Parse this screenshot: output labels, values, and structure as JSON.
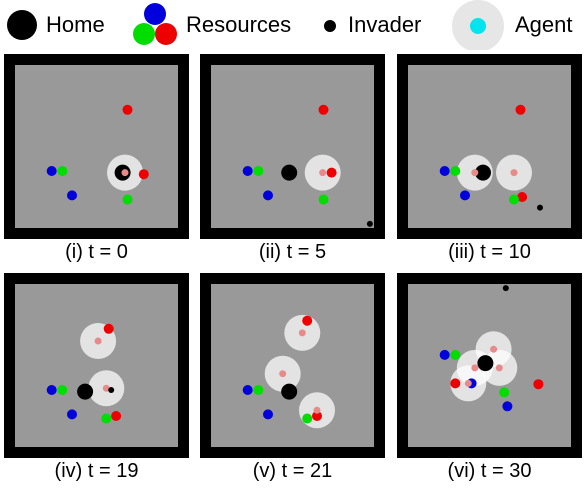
{
  "legend": {
    "home_label": "Home",
    "resources_label": "Resources",
    "invader_label": "Invader",
    "agent_label": "Agent"
  },
  "colors": {
    "frame": "#000000",
    "arena": "#999999",
    "home": "#000000",
    "invader": "#000000",
    "red": "#ee0000",
    "green": "#00dd00",
    "blue": "#0000dd",
    "agent_halo": "#e6e6e6",
    "agent_core": "#e88a8a",
    "agent_legend_core": "#00e5ee"
  },
  "panels": [
    {
      "caption": "(i) t = 0",
      "home": [
        0.32,
        0.32
      ],
      "agents": [
        [
          0.35,
          0.32
        ]
      ],
      "resources": [
        {
          "c": "red",
          "p": [
            0.38,
            -0.45
          ]
        },
        {
          "c": "red",
          "p": [
            0.58,
            0.34
          ]
        },
        {
          "c": "blue",
          "p": [
            -0.55,
            0.3
          ]
        },
        {
          "c": "green",
          "p": [
            -0.42,
            0.3
          ]
        },
        {
          "c": "blue",
          "p": [
            -0.3,
            0.6
          ]
        },
        {
          "c": "green",
          "p": [
            0.38,
            0.65
          ]
        }
      ],
      "invaders": []
    },
    {
      "caption": "(ii) t = 5",
      "home": [
        -0.04,
        0.32
      ],
      "agents": [
        [
          0.37,
          0.32
        ]
      ],
      "resources": [
        {
          "c": "red",
          "p": [
            0.38,
            -0.45
          ]
        },
        {
          "c": "red",
          "p": [
            0.48,
            0.32
          ]
        },
        {
          "c": "blue",
          "p": [
            -0.55,
            0.3
          ]
        },
        {
          "c": "green",
          "p": [
            -0.42,
            0.3
          ]
        },
        {
          "c": "blue",
          "p": [
            -0.3,
            0.6
          ]
        },
        {
          "c": "green",
          "p": [
            0.38,
            0.65
          ]
        }
      ],
      "invaders": [
        [
          0.95,
          0.95
        ]
      ]
    },
    {
      "caption": "(iii) t = 10",
      "home": [
        -0.08,
        0.32
      ],
      "agents": [
        [
          -0.18,
          0.32
        ],
        [
          0.3,
          0.32
        ]
      ],
      "resources": [
        {
          "c": "red",
          "p": [
            0.38,
            -0.45
          ]
        },
        {
          "c": "red",
          "p": [
            0.4,
            0.62
          ]
        },
        {
          "c": "blue",
          "p": [
            -0.55,
            0.3
          ]
        },
        {
          "c": "green",
          "p": [
            -0.42,
            0.3
          ]
        },
        {
          "c": "blue",
          "p": [
            -0.3,
            0.6
          ]
        },
        {
          "c": "green",
          "p": [
            0.3,
            0.65
          ]
        }
      ],
      "invaders": [
        [
          0.62,
          0.75
        ]
      ]
    },
    {
      "caption": "(iv) t = 19",
      "home": [
        -0.14,
        0.32
      ],
      "agents": [
        [
          0.02,
          -0.3
        ],
        [
          0.12,
          0.28
        ]
      ],
      "resources": [
        {
          "c": "red",
          "p": [
            0.15,
            -0.45
          ]
        },
        {
          "c": "red",
          "p": [
            0.24,
            0.62
          ]
        },
        {
          "c": "blue",
          "p": [
            -0.55,
            0.3
          ]
        },
        {
          "c": "green",
          "p": [
            -0.42,
            0.3
          ]
        },
        {
          "c": "blue",
          "p": [
            -0.3,
            0.6
          ]
        },
        {
          "c": "green",
          "p": [
            0.12,
            0.65
          ]
        }
      ],
      "invaders": [
        [
          0.18,
          0.3
        ]
      ]
    },
    {
      "caption": "(v) t = 21",
      "home": [
        -0.04,
        0.32
      ],
      "agents": [
        [
          -0.12,
          0.1
        ],
        [
          0.12,
          -0.4
        ],
        [
          0.3,
          0.55
        ]
      ],
      "resources": [
        {
          "c": "red",
          "p": [
            0.18,
            -0.55
          ]
        },
        {
          "c": "red",
          "p": [
            0.3,
            0.62
          ]
        },
        {
          "c": "blue",
          "p": [
            -0.55,
            0.3
          ]
        },
        {
          "c": "green",
          "p": [
            -0.42,
            0.3
          ]
        },
        {
          "c": "blue",
          "p": [
            -0.3,
            0.6
          ]
        },
        {
          "c": "green",
          "p": [
            0.18,
            0.65
          ]
        }
      ],
      "invaders": []
    },
    {
      "caption": "(vi) t = 30",
      "home": [
        -0.05,
        -0.03
      ],
      "agents": [
        [
          0.05,
          -0.2
        ],
        [
          -0.18,
          0.03
        ],
        [
          0.12,
          0.03
        ],
        [
          -0.26,
          0.22
        ]
      ],
      "resources": [
        {
          "c": "red",
          "p": [
            -0.42,
            0.22
          ]
        },
        {
          "c": "red",
          "p": [
            0.6,
            0.23
          ]
        },
        {
          "c": "blue",
          "p": [
            -0.55,
            -0.13
          ]
        },
        {
          "c": "green",
          "p": [
            -0.42,
            -0.13
          ]
        },
        {
          "c": "blue",
          "p": [
            -0.22,
            0.22
          ]
        },
        {
          "c": "green",
          "p": [
            0.18,
            0.33
          ]
        },
        {
          "c": "blue",
          "p": [
            0.22,
            0.5
          ]
        }
      ],
      "invaders": [
        [
          0.2,
          -0.95
        ]
      ]
    }
  ]
}
